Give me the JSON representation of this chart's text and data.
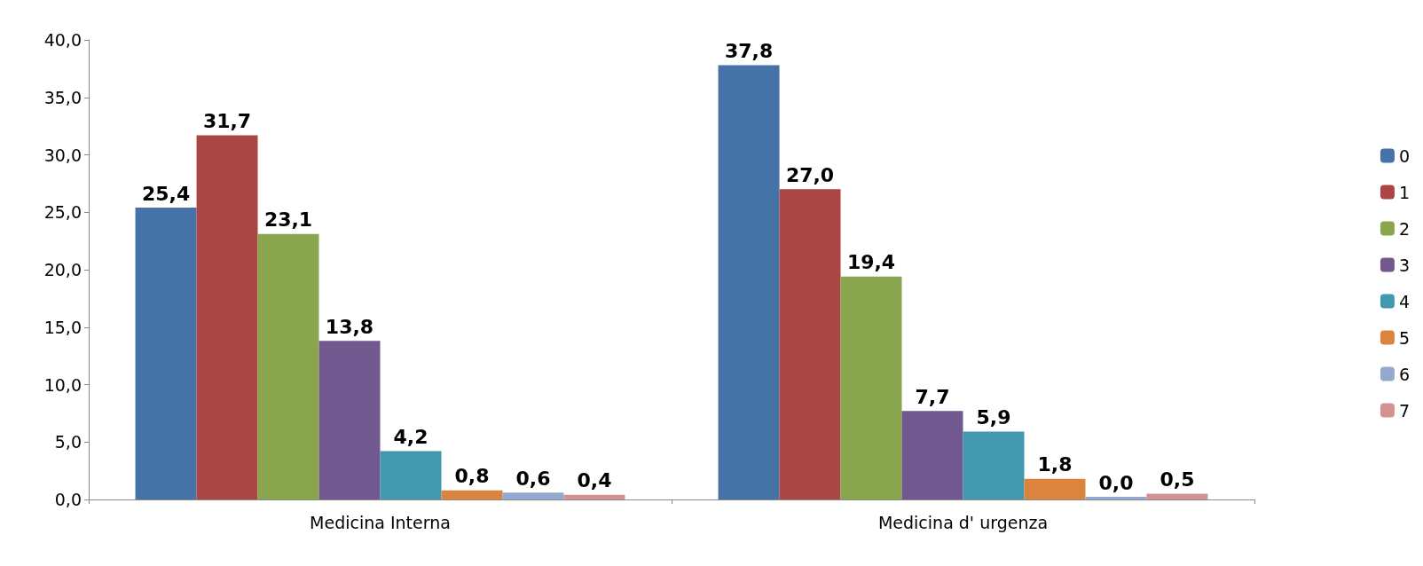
{
  "chart_data": {
    "type": "bar",
    "categories": [
      "Medicina Interna",
      "Medicina d' urgenza"
    ],
    "series": [
      {
        "name": "0",
        "color": "#4572a7",
        "values": [
          25.4,
          37.8
        ],
        "value_labels": [
          "25,4",
          "37,8"
        ]
      },
      {
        "name": "1",
        "color": "#aa4643",
        "values": [
          31.7,
          27.0
        ],
        "value_labels": [
          "31,7",
          "27,0"
        ]
      },
      {
        "name": "2",
        "color": "#89a54e",
        "values": [
          23.1,
          19.4
        ],
        "value_labels": [
          "23,1",
          "19,4"
        ]
      },
      {
        "name": "3",
        "color": "#71588f",
        "values": [
          13.8,
          7.7
        ],
        "value_labels": [
          "13,8",
          "7,7"
        ]
      },
      {
        "name": "4",
        "color": "#4198af",
        "values": [
          4.2,
          5.9
        ],
        "value_labels": [
          "4,2",
          "5,9"
        ]
      },
      {
        "name": "5",
        "color": "#db843d",
        "values": [
          0.8,
          1.8
        ],
        "value_labels": [
          "0,8",
          "1,8"
        ]
      },
      {
        "name": "6",
        "color": "#93a9cf",
        "values": [
          0.6,
          0.0
        ],
        "value_labels": [
          "0,6",
          "0,0"
        ]
      },
      {
        "name": "7",
        "color": "#d19392",
        "values": [
          0.4,
          0.5
        ],
        "value_labels": [
          "0,4",
          "0,5"
        ]
      }
    ],
    "ylim": [
      0,
      40
    ],
    "yticks": [
      {
        "value": 0,
        "label": "0,0"
      },
      {
        "value": 5,
        "label": "5,0"
      },
      {
        "value": 10,
        "label": "10,0"
      },
      {
        "value": 15,
        "label": "15,0"
      },
      {
        "value": 20,
        "label": "20,0"
      },
      {
        "value": 25,
        "label": "25,0"
      },
      {
        "value": 30,
        "label": "30,0"
      },
      {
        "value": 35,
        "label": "35,0"
      },
      {
        "value": 40,
        "label": "40,0"
      }
    ],
    "grid": false,
    "legend": "right"
  }
}
